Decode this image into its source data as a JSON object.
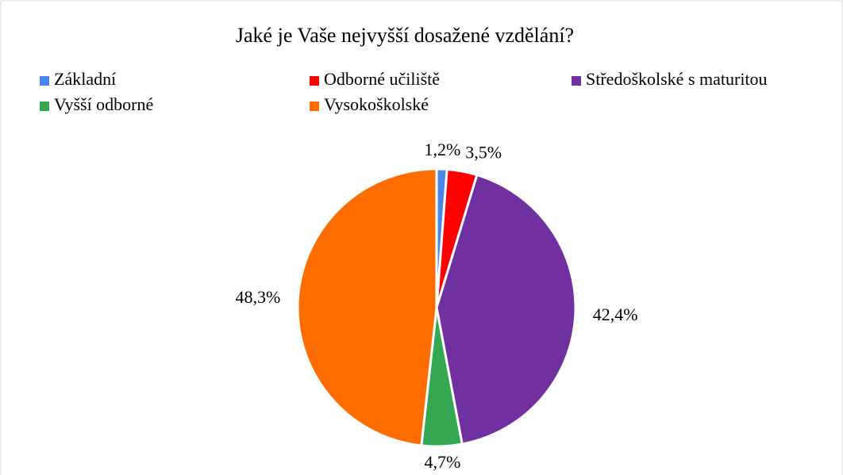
{
  "chart_data": {
    "type": "pie",
    "title": "Jaké je Vaše nejvyšší dosažené vzdělání?",
    "categories": [
      "Základní",
      "Odborné učiliště",
      "Středoškolské s maturitou",
      "Vyšší odborné",
      "Vysokoškolské"
    ],
    "values": [
      1.2,
      3.5,
      42.4,
      4.7,
      48.3
    ],
    "value_labels": [
      "1,2%",
      "3,5%",
      "42,4%",
      "4,7%",
      "48,3%"
    ],
    "colors": [
      "#4a86e8",
      "#ff0000",
      "#7030a0",
      "#34a853",
      "#ff6d01"
    ]
  }
}
